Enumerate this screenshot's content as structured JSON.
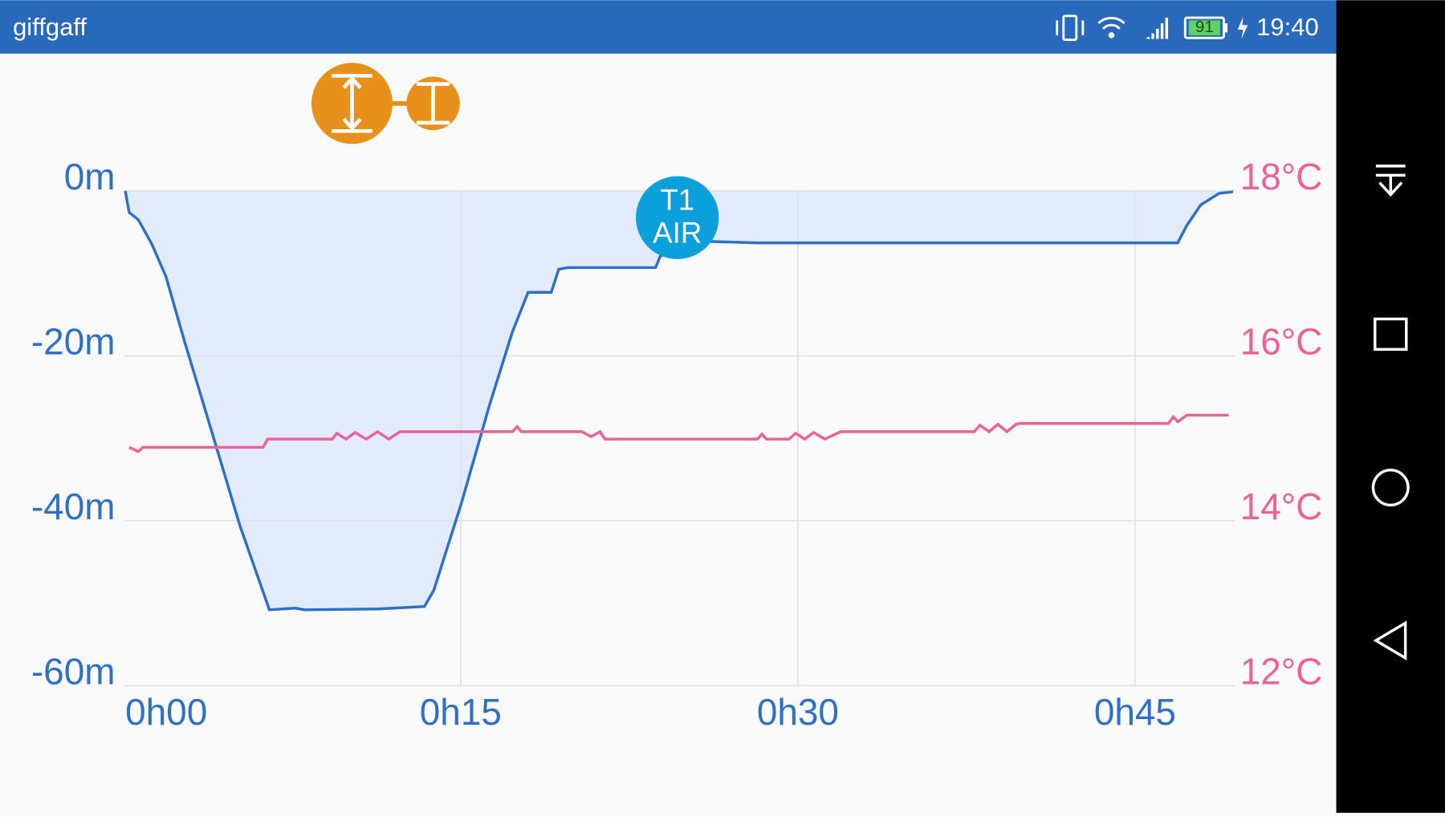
{
  "status_bar": {
    "carrier": "giffgaff",
    "battery": "91",
    "time": "19:40"
  },
  "chart_data": {
    "type": "line",
    "annotation": [
      "T1",
      "AIR"
    ],
    "xlim": [
      0,
      49.4
    ],
    "xticks": [
      {
        "value": 0,
        "label": "0h00"
      },
      {
        "value": 15,
        "label": "0h15"
      },
      {
        "value": 30,
        "label": "0h30"
      },
      {
        "value": 45,
        "label": "0h45"
      }
    ],
    "ylim": [
      -60,
      0
    ],
    "yticks": [
      {
        "value": 0,
        "label": "0m"
      },
      {
        "value": -20,
        "label": "-20m"
      },
      {
        "value": -40,
        "label": "-40m"
      },
      {
        "value": -60,
        "label": "-60m"
      }
    ],
    "y2lim": [
      12,
      18
    ],
    "y2ticks": [
      {
        "value": 18,
        "label": "18°C"
      },
      {
        "value": 16,
        "label": "16°C"
      },
      {
        "value": 14,
        "label": "14°C"
      },
      {
        "value": 12,
        "label": "12°C"
      }
    ],
    "grid": true,
    "series": [
      {
        "color": "#2f6fc4",
        "fill": "#e1ebfb",
        "x": [
          0.08,
          0.25,
          0.66,
          1.27,
          1.89,
          2.71,
          3.95,
          5.18,
          6.49,
          7.64,
          8.05,
          11.34,
          13.39,
          13.81,
          15.04,
          16.28,
          17.3,
          18.0,
          19.03,
          19.36,
          19.77,
          23.67,
          23.88,
          25.73,
          28.2,
          33.13,
          46.9,
          47.3,
          47.92,
          48.74,
          49.36
        ],
        "values": [
          0,
          -2.6,
          -3.5,
          -6.5,
          -10.4,
          -18.2,
          -29.4,
          -40.6,
          -50.8,
          -50.6,
          -50.8,
          -50.7,
          -50.4,
          -48.4,
          -37.8,
          -26.0,
          -17.1,
          -12.3,
          -12.3,
          -9.5,
          -9.3,
          -9.3,
          -7.9,
          -6.1,
          -6.3,
          -6.3,
          -6.3,
          -4.2,
          -1.7,
          -0.3,
          -0.1
        ]
      },
      {
        "color": "#ec6294",
        "axis": "y2",
        "x": [
          0.25,
          0.66,
          0.86,
          6.21,
          6.41,
          9.29,
          9.49,
          9.9,
          10.3,
          10.8,
          11.3,
          11.8,
          12.3,
          12.58,
          17.3,
          17.51,
          17.7,
          20.39,
          20.8,
          21.2,
          21.42,
          28.2,
          28.4,
          28.6,
          29.6,
          29.9,
          30.3,
          30.7,
          31.2,
          31.9,
          37.85,
          38.1,
          38.5,
          38.9,
          39.3,
          39.7,
          39.9,
          46.48,
          46.7,
          46.9,
          47.3,
          47.9,
          49.16
        ],
        "values": [
          14.89,
          14.84,
          14.89,
          14.89,
          14.99,
          14.99,
          15.06,
          14.99,
          15.07,
          14.99,
          15.08,
          14.99,
          15.08,
          15.08,
          15.08,
          15.14,
          15.08,
          15.08,
          15.02,
          15.08,
          14.99,
          14.99,
          15.05,
          14.99,
          14.99,
          15.06,
          14.99,
          15.07,
          14.99,
          15.08,
          15.08,
          15.16,
          15.08,
          15.17,
          15.08,
          15.17,
          15.18,
          15.18,
          15.26,
          15.2,
          15.28,
          15.28,
          15.28
        ]
      }
    ]
  }
}
